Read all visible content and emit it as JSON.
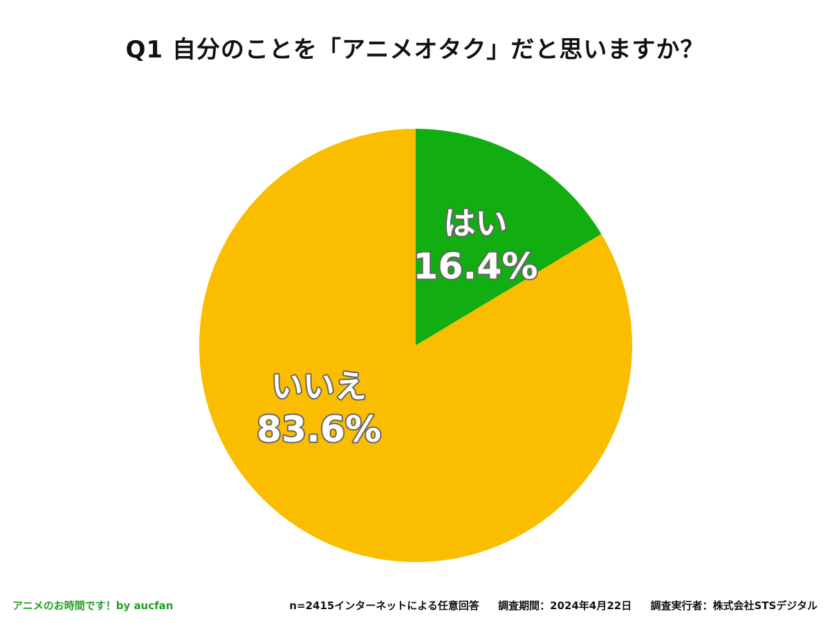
{
  "chart_data": {
    "type": "pie",
    "title": "Q1 自分のことを「アニメオタク」だと思いますか？",
    "slices": [
      {
        "label": "はい",
        "value": 16.4,
        "value_label": "16.4%",
        "color": "#11ad11"
      },
      {
        "label": "いいえ",
        "value": 83.6,
        "value_label": "83.6%",
        "color": "#fbbd00"
      }
    ],
    "start": "12 o'clock",
    "direction": "clockwise"
  },
  "footer": {
    "brand": "アニメのお時間です！by aucfan",
    "sample": "n=2415インターネットによる任意回答",
    "period": "調査期間：2024年4月22日",
    "conductor": "調査実行者：株式会社STSデジタル"
  },
  "colors": {
    "brand_text": "#22a022",
    "label_outline": "#666666",
    "background": "#ffffff"
  }
}
